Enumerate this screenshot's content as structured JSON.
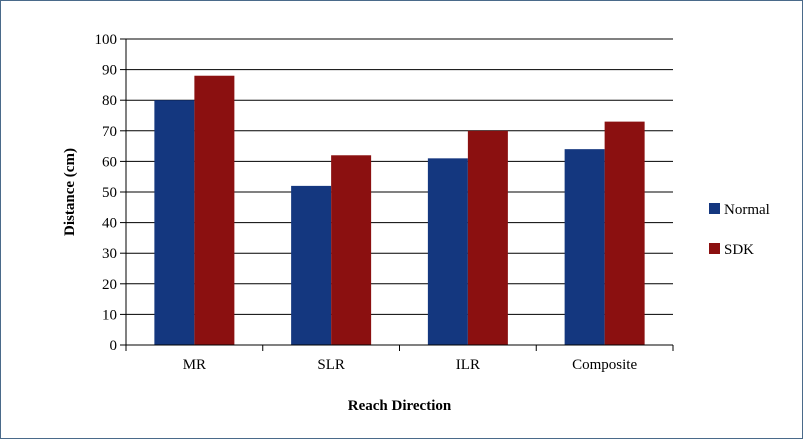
{
  "chart_data": {
    "type": "bar",
    "title": "",
    "xlabel": "Reach Direction",
    "ylabel": "Distance (cm)",
    "categories": [
      "MR",
      "SLR",
      "ILR",
      "Composite"
    ],
    "series": [
      {
        "name": "Normal",
        "color": "#14377f",
        "values": [
          80,
          52,
          61,
          64
        ]
      },
      {
        "name": "SDK",
        "color": "#8b1010",
        "values": [
          88,
          62,
          70,
          73
        ]
      }
    ],
    "ylim": [
      0,
      100
    ],
    "yticks": [
      0,
      10,
      20,
      30,
      40,
      50,
      60,
      70,
      80,
      90,
      100
    ],
    "grid": true,
    "legend": "right"
  }
}
